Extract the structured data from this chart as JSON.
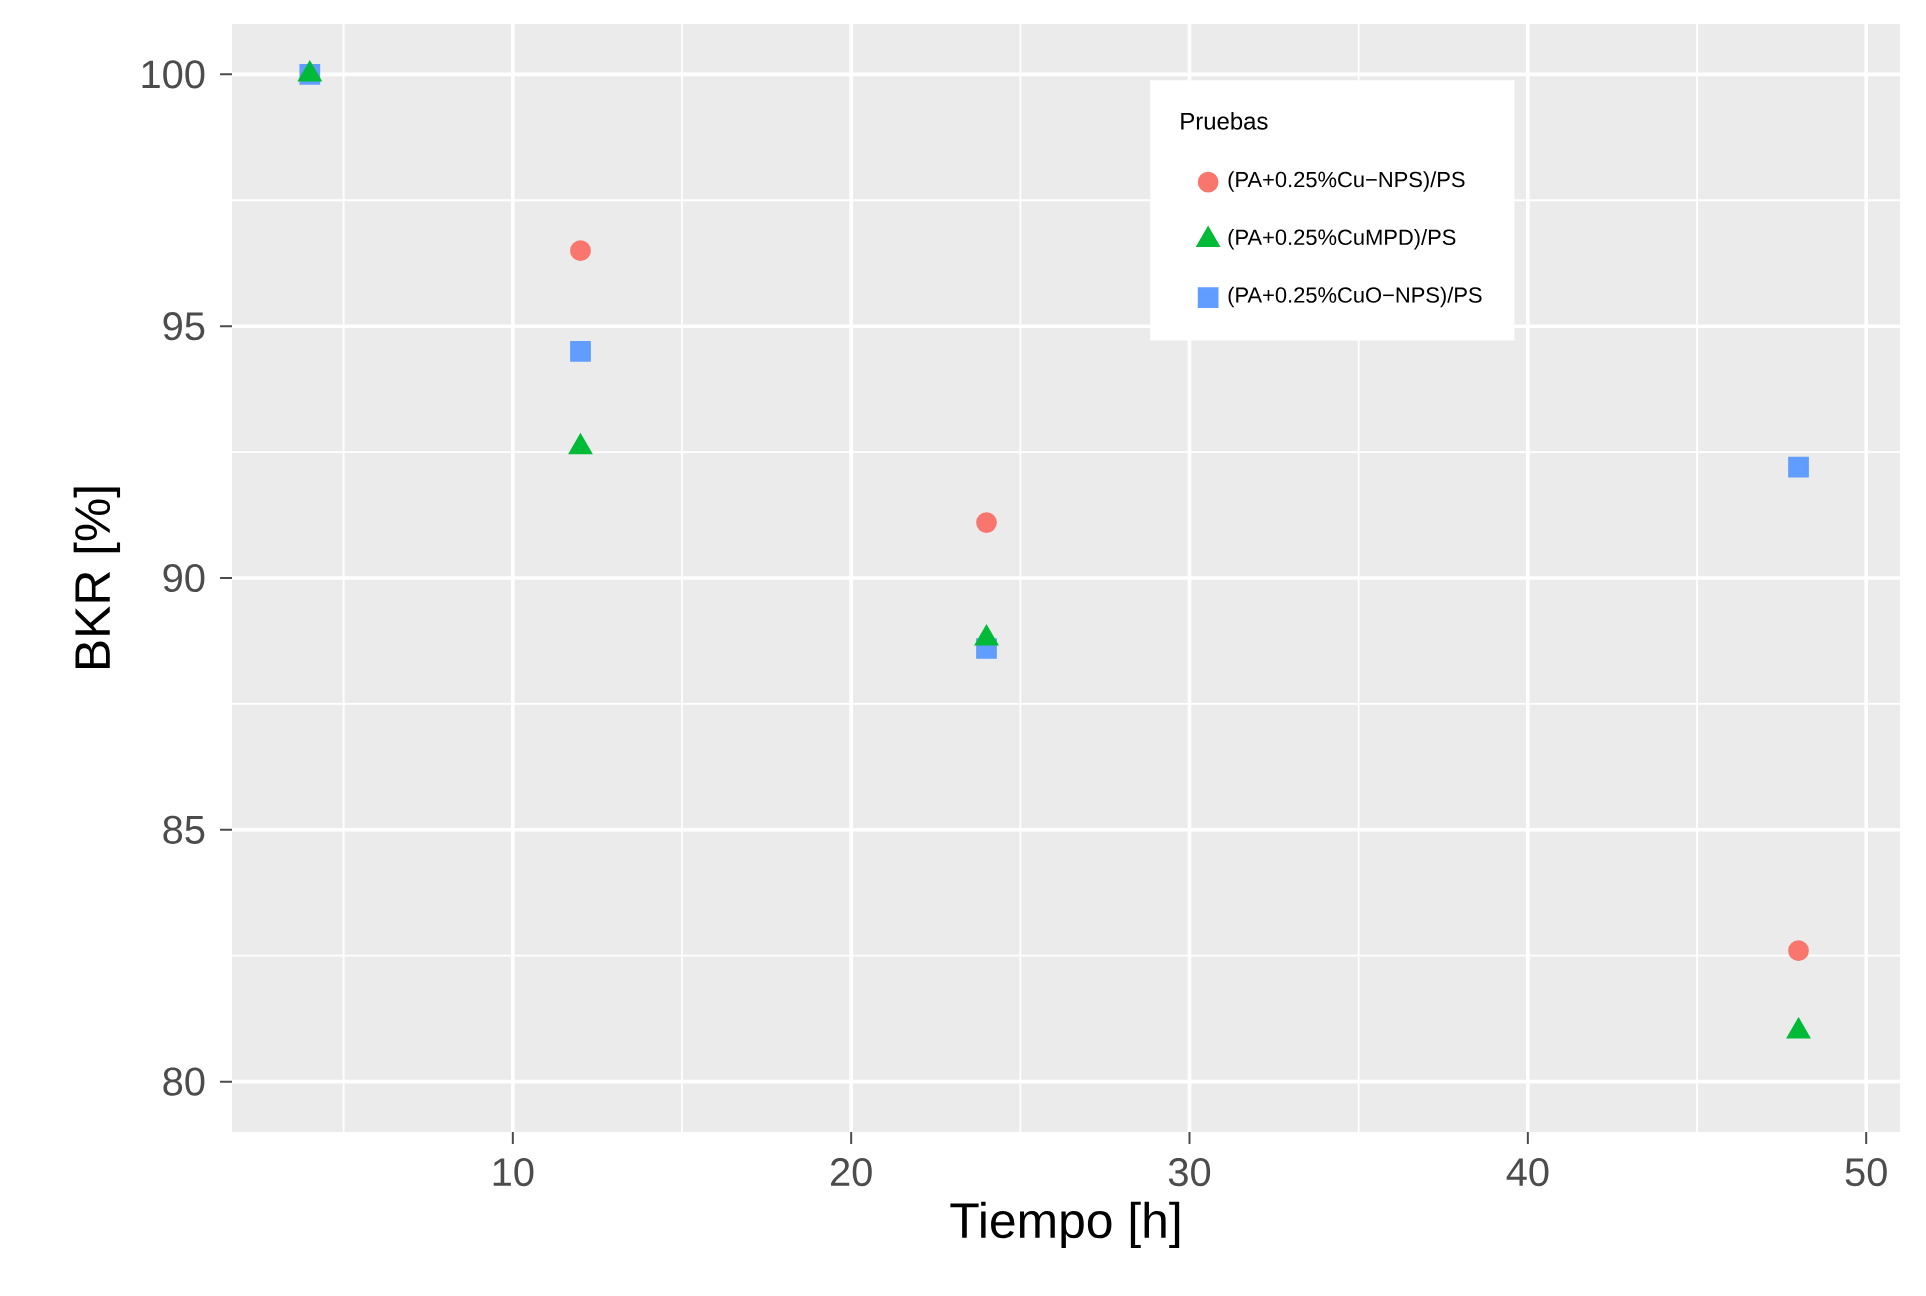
{
  "chart_data": {
    "type": "scatter",
    "xlabel": "Tiempo [h]",
    "ylabel": "BKR [%]",
    "legend_title": "Pruebas",
    "series": [
      {
        "name": "(PA+0.25%Cu−NPS)/PS",
        "color": "#f8766d",
        "marker": "circle",
        "x": [
          12,
          24,
          48
        ],
        "values": [
          96.5,
          91.1,
          82.6
        ]
      },
      {
        "name": "(PA+0.25%CuMPD)/PS",
        "color": "#00ba38",
        "marker": "triangle",
        "x": [
          4,
          12,
          24,
          48
        ],
        "values": [
          100,
          92.6,
          88.8,
          81.0
        ]
      },
      {
        "name": "(PA+0.25%CuO−NPS)/PS",
        "color": "#619cff",
        "marker": "square",
        "x": [
          4,
          12,
          24,
          48
        ],
        "values": [
          100,
          94.5,
          88.6,
          92.2
        ]
      }
    ],
    "xlim": [
      1.7,
      51.0
    ],
    "ylim": [
      79.0,
      101.0
    ],
    "xticks": [
      10,
      20,
      30,
      40,
      50
    ],
    "yticks": [
      80,
      85,
      90,
      95,
      100
    ],
    "grid": true,
    "legend": "top right"
  }
}
